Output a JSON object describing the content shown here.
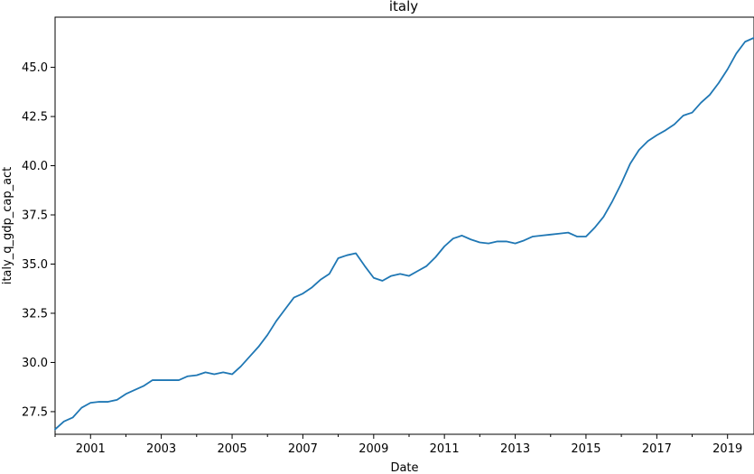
{
  "chart_data": {
    "type": "line",
    "title": "italy",
    "xlabel": "Date",
    "ylabel": "italy_q_gdp_cap_act",
    "grid": false,
    "legend": "none",
    "line_color": "#1f77b4",
    "xlim": [
      "2000-01-01",
      "2019-10-01"
    ],
    "ylim": [
      26.35,
      47.55
    ],
    "x_ticks": [
      "2001",
      "2003",
      "2005",
      "2007",
      "2009",
      "2011",
      "2013",
      "2015",
      "2017",
      "2019"
    ],
    "y_ticks": [
      "27.5",
      "30.0",
      "32.5",
      "35.0",
      "37.5",
      "40.0",
      "42.5",
      "45.0"
    ],
    "series": [
      {
        "x": [
          "2000-01-01",
          "2000-04-01",
          "2000-07-01",
          "2000-10-01",
          "2001-01-01",
          "2001-04-01",
          "2001-07-01",
          "2001-10-01",
          "2002-01-01",
          "2002-04-01",
          "2002-07-01",
          "2002-10-01",
          "2003-01-01",
          "2003-04-01",
          "2003-07-01",
          "2003-10-01",
          "2004-01-01",
          "2004-04-01",
          "2004-07-01",
          "2004-10-01",
          "2005-01-01",
          "2005-04-01",
          "2005-07-01",
          "2005-10-01",
          "2006-01-01",
          "2006-04-01",
          "2006-07-01",
          "2006-10-01",
          "2007-01-01",
          "2007-04-01",
          "2007-07-01",
          "2007-10-01",
          "2008-01-01",
          "2008-04-01",
          "2008-07-01",
          "2008-10-01",
          "2009-01-01",
          "2009-04-01",
          "2009-07-01",
          "2009-10-01",
          "2010-01-01",
          "2010-04-01",
          "2010-07-01",
          "2010-10-01",
          "2011-01-01",
          "2011-04-01",
          "2011-07-01",
          "2011-10-01",
          "2012-01-01",
          "2012-04-01",
          "2012-07-01",
          "2012-10-01",
          "2013-01-01",
          "2013-04-01",
          "2013-07-01",
          "2013-10-01",
          "2014-01-01",
          "2014-04-01",
          "2014-07-01",
          "2014-10-01",
          "2015-01-01",
          "2015-04-01",
          "2015-07-01",
          "2015-10-01",
          "2016-01-01",
          "2016-04-01",
          "2016-07-01",
          "2016-10-01",
          "2017-01-01",
          "2017-04-01",
          "2017-07-01",
          "2017-10-01",
          "2018-01-01",
          "2018-04-01",
          "2018-07-01",
          "2018-10-01",
          "2019-01-01",
          "2019-04-01",
          "2019-07-01",
          "2019-10-01"
        ],
        "values": [
          26.6,
          27.0,
          27.2,
          27.7,
          27.95,
          28.0,
          28.0,
          28.1,
          28.4,
          28.6,
          28.8,
          29.1,
          29.1,
          29.1,
          29.1,
          29.3,
          29.35,
          29.5,
          29.4,
          29.5,
          29.4,
          29.8,
          30.3,
          30.8,
          31.4,
          32.1,
          32.7,
          33.3,
          33.5,
          33.8,
          34.2,
          34.5,
          35.3,
          35.45,
          35.55,
          34.9,
          34.3,
          34.15,
          34.4,
          34.5,
          34.4,
          34.65,
          34.9,
          35.35,
          35.9,
          36.3,
          36.45,
          36.25,
          36.1,
          36.05,
          36.15,
          36.15,
          36.05,
          36.2,
          36.4,
          36.45,
          36.5,
          36.55,
          36.6,
          36.4,
          36.4,
          36.85,
          37.4,
          38.2,
          39.1,
          40.1,
          40.8,
          41.25,
          41.55,
          41.8,
          42.1,
          42.55,
          42.7,
          43.2,
          43.6,
          44.2,
          44.9,
          45.7,
          46.3,
          46.5
        ]
      }
    ]
  }
}
